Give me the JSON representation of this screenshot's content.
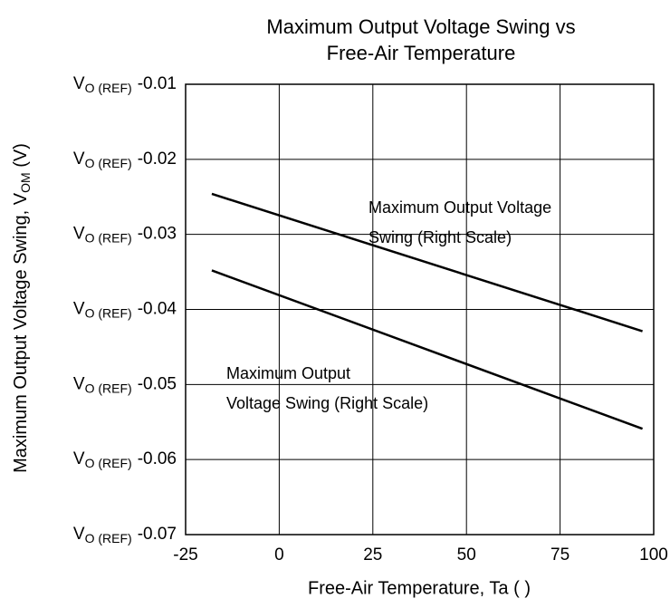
{
  "chart_data": {
    "type": "line",
    "title": [
      "Maximum Output Voltage Swing vs",
      "Free-Air Temperature"
    ],
    "x_label": "Free-Air Temperature, Ta (   )",
    "y_label": {
      "text": "Maximum Output Voltage Swing, V",
      "sub": "OM",
      "suffix": " (V)"
    },
    "ytick_prefix": {
      "text": "V",
      "sub": "O (REF)"
    },
    "x": [
      -18,
      97
    ],
    "series": [
      {
        "name": [
          "Maximum Output Voltage",
          "Swing (Right Scale)"
        ],
        "color": "#000000",
        "values": [
          -0.0246,
          -0.0429
        ]
      },
      {
        "name": [
          "Maximum Output",
          "Voltage Swing (Right Scale)"
        ],
        "color": "#000000",
        "values": [
          -0.0348,
          -0.0559
        ]
      }
    ],
    "xlim": [
      -25,
      100
    ],
    "xticks": [
      -25,
      0,
      25,
      50,
      75,
      100
    ],
    "ylim": [
      -0.07,
      -0.01
    ],
    "yticks": [
      -0.01,
      -0.02,
      -0.03,
      -0.04,
      -0.05,
      -0.06,
      -0.07
    ],
    "grid": true
  }
}
